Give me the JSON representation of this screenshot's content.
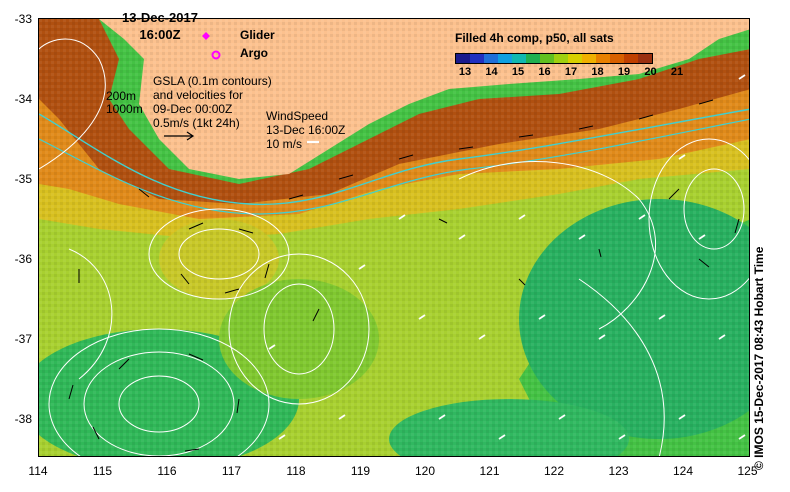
{
  "header": {
    "date": "13-Dec-2017",
    "time": "16:00Z"
  },
  "legend": {
    "glider": "Glider",
    "argo": "Argo",
    "glider_color": "#ff00ff",
    "argo_color": "#ff00ff"
  },
  "annotations": {
    "contour_200": "200m",
    "contour_1000": "1000m",
    "gsla_line1": "GSLA (0.1m contours)",
    "gsla_line2": "and velocities for",
    "gsla_line3": "09-Dec 00:00Z",
    "gsla_line4": "0.5m/s (1kt 24h)",
    "wind_line1": "WindSpeed",
    "wind_line2": "13-Dec 16:00Z",
    "wind_line3": "10 m/s"
  },
  "colorbar": {
    "title": "Filled 4h comp, p50, all sats",
    "ticks": [
      "13",
      "14",
      "15",
      "16",
      "17",
      "18",
      "19",
      "20",
      "21"
    ],
    "colors": [
      "#1a1a8c",
      "#2030c0",
      "#1f6fd8",
      "#10a0e0",
      "#10b8b0",
      "#20b050",
      "#60c020",
      "#a0d010",
      "#d8d000",
      "#f0b000",
      "#e88000",
      "#d86000",
      "#c04000",
      "#9a3010"
    ]
  },
  "axes": {
    "x_ticks": [
      "114",
      "115",
      "116",
      "117",
      "118",
      "119",
      "120",
      "121",
      "122",
      "123",
      "124",
      "125"
    ],
    "y_ticks": [
      "-33",
      "-34",
      "-35",
      "-36",
      "-37",
      "-38"
    ]
  },
  "credit": "© IMOS 15-Dec-2017 08:43 Hobart Time",
  "colors": {
    "land": "#fcc18e",
    "warm_shelf": "#d97a1a",
    "coastal": "#b04a10",
    "mid": "#c8c828",
    "cool": "#40c040",
    "coldest": "#20b070",
    "isobath": "#40d0d0",
    "contour": "#ffffff"
  }
}
